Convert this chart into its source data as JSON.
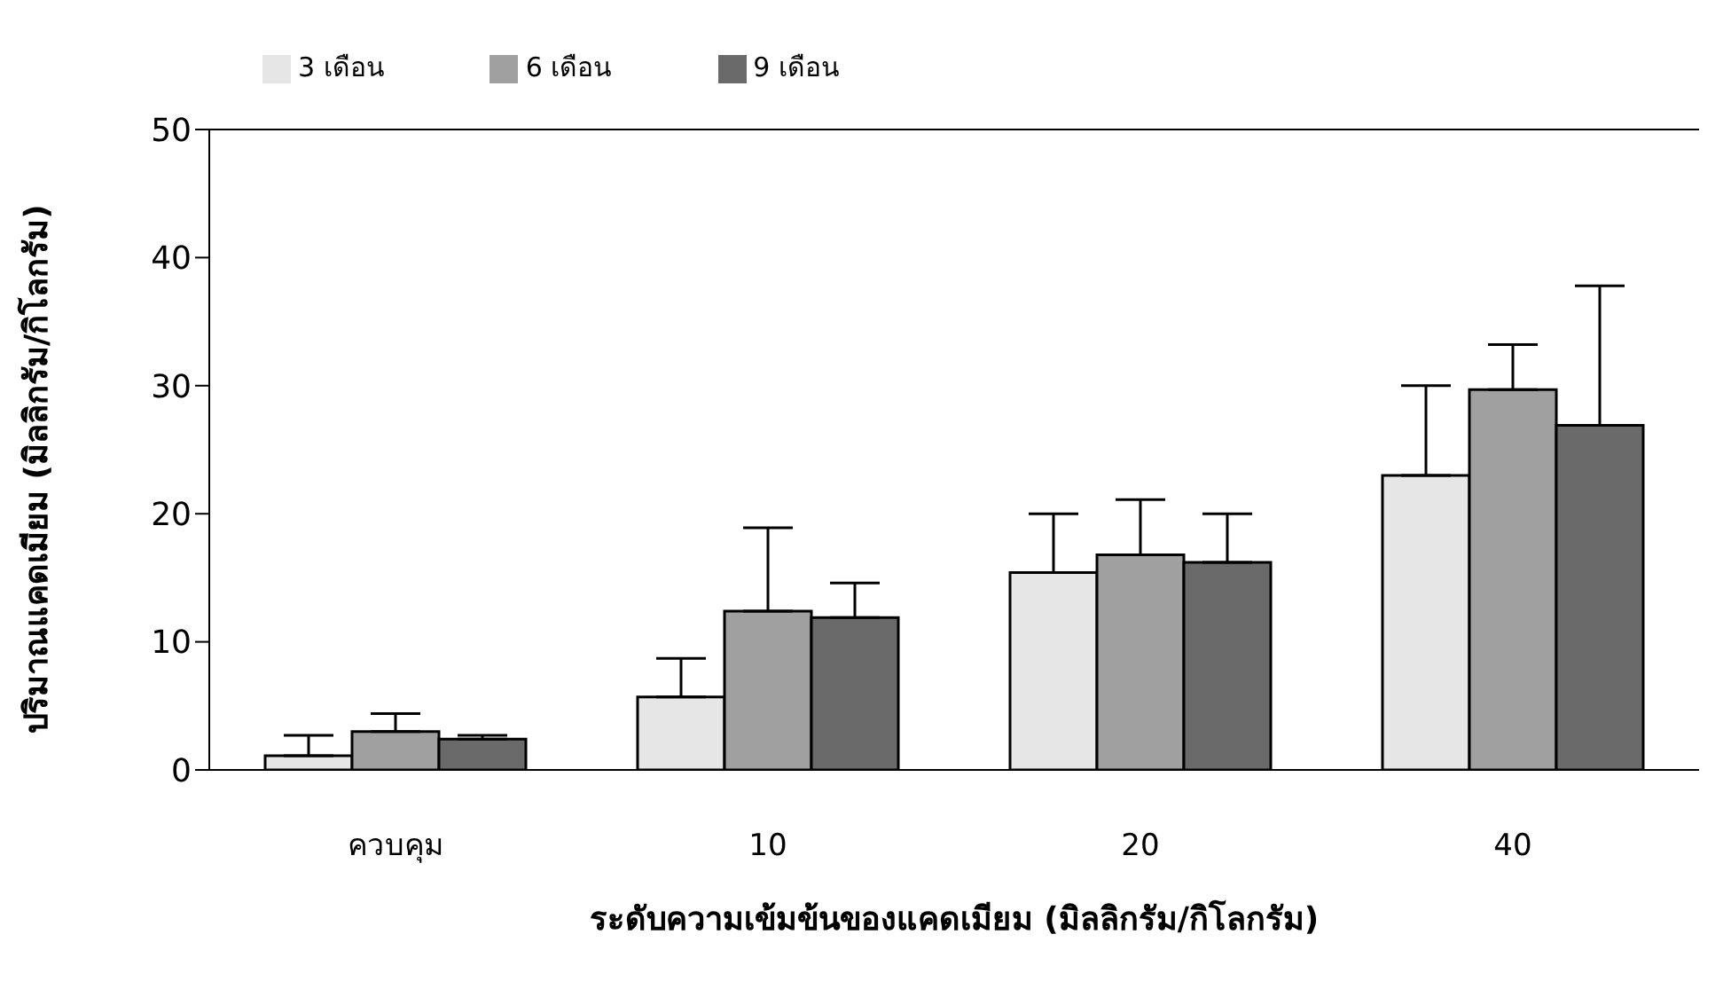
{
  "chart_data": {
    "type": "bar",
    "xlabel": "ระดับความเข้มข้นของแคดเมียม (มิลลิกรัม/กิโลกรัม)",
    "ylabel": "ปริมาณแคดเมียม (มิลลิกรัม/กิโลกรัม)",
    "categories": [
      "ควบคุม",
      "10",
      "20",
      "40"
    ],
    "series": [
      {
        "name": "3 เดือน",
        "color": "#e6e6e6",
        "values": [
          1.1,
          5.7,
          15.4,
          23.0
        ],
        "errors": [
          [
            1.1,
            2.7
          ],
          [
            5.7,
            8.7
          ],
          [
            15.4,
            20.0
          ],
          [
            23.0,
            30.0
          ]
        ]
      },
      {
        "name": "6 เดือน",
        "color": "#a0a0a0",
        "values": [
          3.0,
          12.4,
          16.8,
          29.7
        ],
        "errors": [
          [
            3.0,
            4.4
          ],
          [
            12.4,
            18.9
          ],
          [
            16.8,
            21.1
          ],
          [
            29.7,
            33.2
          ]
        ]
      },
      {
        "name": "9 เดือน",
        "color": "#6a6a6a",
        "values": [
          2.4,
          11.9,
          16.2,
          26.9
        ],
        "errors": [
          [
            2.4,
            2.7
          ],
          [
            11.9,
            14.6
          ],
          [
            16.2,
            20.0
          ],
          [
            26.9,
            37.8
          ]
        ]
      }
    ],
    "ylim": [
      0,
      50
    ],
    "yticks": [
      0,
      10,
      20,
      30,
      40,
      50
    ],
    "grid": false,
    "legend": "top left"
  }
}
